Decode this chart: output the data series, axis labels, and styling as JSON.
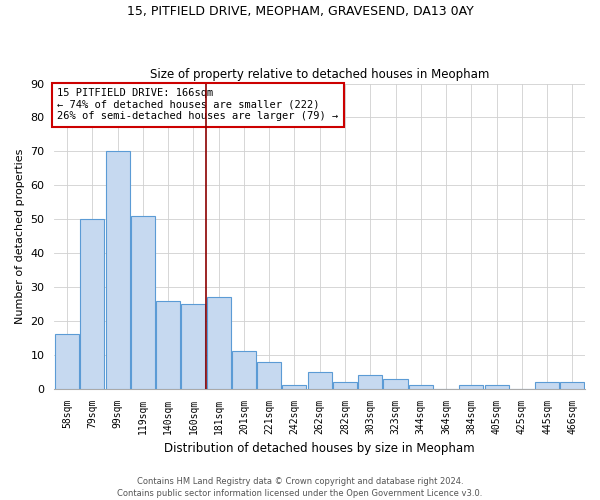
{
  "title1": "15, PITFIELD DRIVE, MEOPHAM, GRAVESEND, DA13 0AY",
  "title2": "Size of property relative to detached houses in Meopham",
  "xlabel": "Distribution of detached houses by size in Meopham",
  "ylabel": "Number of detached properties",
  "categories": [
    "58sqm",
    "79sqm",
    "99sqm",
    "119sqm",
    "140sqm",
    "160sqm",
    "181sqm",
    "201sqm",
    "221sqm",
    "242sqm",
    "262sqm",
    "282sqm",
    "303sqm",
    "323sqm",
    "344sqm",
    "364sqm",
    "384sqm",
    "405sqm",
    "425sqm",
    "445sqm",
    "466sqm"
  ],
  "values": [
    16,
    50,
    70,
    51,
    26,
    25,
    27,
    11,
    8,
    1,
    5,
    2,
    4,
    3,
    1,
    0,
    1,
    1,
    0,
    2,
    2
  ],
  "bar_color": "#c6d9f0",
  "bar_edge_color": "#5b9bd5",
  "vline_x": 6.0,
  "vline_color": "#8b0000",
  "annotation_text": "15 PITFIELD DRIVE: 166sqm\n← 74% of detached houses are smaller (222)\n26% of semi-detached houses are larger (79) →",
  "annotation_box_color": "white",
  "annotation_box_edge": "#cc0000",
  "ylim": [
    0,
    90
  ],
  "yticks": [
    0,
    10,
    20,
    30,
    40,
    50,
    60,
    70,
    80,
    90
  ],
  "footer1": "Contains HM Land Registry data © Crown copyright and database right 2024.",
  "footer2": "Contains public sector information licensed under the Open Government Licence v3.0.",
  "bg_color": "#ffffff",
  "grid_color": "#d0d0d0"
}
